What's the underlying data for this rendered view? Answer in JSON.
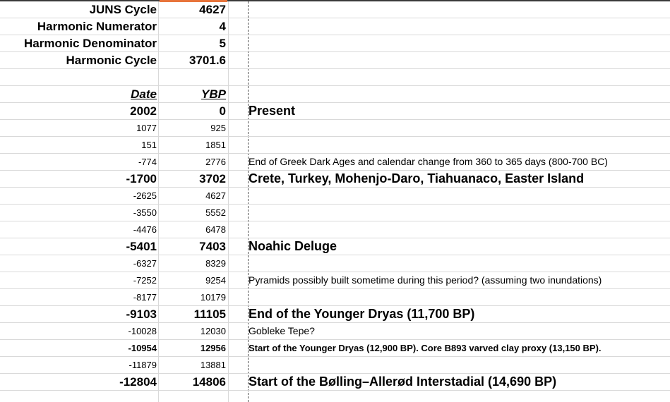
{
  "params": [
    {
      "label": "JUNS Cycle",
      "value": "4627"
    },
    {
      "label": "Harmonic Numerator",
      "value": "4"
    },
    {
      "label": "Harmonic Denominator",
      "value": "5"
    },
    {
      "label": "Harmonic Cycle",
      "value": "3701.6"
    }
  ],
  "headers": {
    "date": "Date",
    "ybp": "YBP"
  },
  "rows": [
    {
      "date": "2002",
      "ybp": "0",
      "note": "Present",
      "style": "big"
    },
    {
      "date": "1077",
      "ybp": "925",
      "note": "",
      "style": "small"
    },
    {
      "date": "151",
      "ybp": "1851",
      "note": "",
      "style": "small"
    },
    {
      "date": "-774",
      "ybp": "2776",
      "note": "End of Greek Dark Ages and calendar change from 360 to 365 days (800-700 BC)",
      "style": "small"
    },
    {
      "date": "-1700",
      "ybp": "3702",
      "note": "Crete, Turkey, Mohenjo-Daro, Tiahuanaco, Easter Island",
      "style": "big"
    },
    {
      "date": "-2625",
      "ybp": "4627",
      "note": "",
      "style": "small"
    },
    {
      "date": "-3550",
      "ybp": "5552",
      "note": "",
      "style": "small"
    },
    {
      "date": "-4476",
      "ybp": "6478",
      "note": "",
      "style": "small"
    },
    {
      "date": "-5401",
      "ybp": "7403",
      "note": "Noahic Deluge",
      "style": "big"
    },
    {
      "date": "-6327",
      "ybp": "8329",
      "note": "",
      "style": "small"
    },
    {
      "date": "-7252",
      "ybp": "9254",
      "note": "Pyramids possibly built sometime during this period? (assuming two inundations)",
      "style": "small"
    },
    {
      "date": "-8177",
      "ybp": "10179",
      "note": "",
      "style": "small"
    },
    {
      "date": "-9103",
      "ybp": "11105",
      "note": "End of the Younger Dryas (11,700 BP)",
      "style": "big"
    },
    {
      "date": "-10028",
      "ybp": "12030",
      "note": "Gobleke Tepe?",
      "style": "small"
    },
    {
      "date": "-10954",
      "ybp": "12956",
      "note": "Start of the Younger Dryas (12,900 BP). Core B893 varved clay proxy (13,150 BP).",
      "style": "mid"
    },
    {
      "date": "-11879",
      "ybp": "13881",
      "note": "",
      "style": "small"
    },
    {
      "date": "-12804",
      "ybp": "14806",
      "note": "Start of the Bølling–Allerød Interstadial (14,690 BP)",
      "style": "big"
    }
  ]
}
